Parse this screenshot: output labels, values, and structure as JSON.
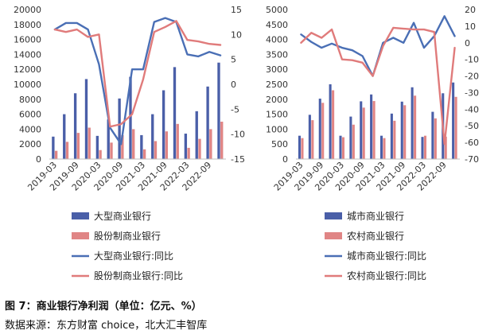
{
  "caption": "图 7：商业银行净利润（单位：亿元、%）",
  "source": "数据来源：东方财富 choice，北大汇丰智库",
  "chart_data": [
    {
      "type": "bar",
      "categories": [
        "2019-03",
        "2019-06",
        "2019-09",
        "2019-12",
        "2020-03",
        "2020-06",
        "2020-09",
        "2020-12",
        "2021-03",
        "2021-06",
        "2021-09",
        "2021-12",
        "2022-03",
        "2022-06",
        "2022-09",
        "2022-12"
      ],
      "x_tick_labels": [
        "2019-03",
        "2019-09",
        "2020-03",
        "2020-09",
        "2021-03",
        "2021-09",
        "2022-03",
        "2022-09"
      ],
      "ylim_left": [
        0,
        20000
      ],
      "yticks_left": [
        0,
        2000,
        4000,
        6000,
        8000,
        10000,
        12000,
        14000,
        16000,
        18000,
        20000
      ],
      "ylim_right": [
        -15,
        15
      ],
      "yticks_right": [
        -15,
        -10,
        -5,
        0,
        5,
        10,
        15
      ],
      "series": [
        {
          "name": "大型商业银行",
          "kind": "bar",
          "axis": "left",
          "color": "#4a5fa8",
          "values": [
            3000,
            6000,
            8800,
            10700,
            3100,
            5300,
            8100,
            11000,
            3200,
            6000,
            9200,
            12300,
            3400,
            6400,
            9700,
            12900
          ]
        },
        {
          "name": "股份制商业银行",
          "kind": "bar",
          "axis": "left",
          "color": "#e08585",
          "values": [
            1100,
            2300,
            3500,
            4200,
            1200,
            2200,
            3200,
            4000,
            1300,
            2400,
            3700,
            4700,
            1500,
            2700,
            4000,
            5000
          ]
        },
        {
          "name": "大型商业银行:同比",
          "kind": "line",
          "axis": "right",
          "color": "#4a6fb5",
          "values": [
            11.0,
            12.3,
            12.3,
            11.0,
            4.0,
            -8.7,
            -12.0,
            3.0,
            3.0,
            12.5,
            13.3,
            12.5,
            6.0,
            5.6,
            6.5,
            5.8
          ]
        },
        {
          "name": "股份制商业银行:同比",
          "kind": "line",
          "axis": "right",
          "color": "#e07b7b",
          "values": [
            11.0,
            10.5,
            11.0,
            9.5,
            10.0,
            -8.5,
            -8.0,
            -6.0,
            1.0,
            10.5,
            11.5,
            12.7,
            8.9,
            8.6,
            8.1,
            7.9
          ]
        }
      ]
    },
    {
      "type": "bar",
      "categories": [
        "2019-03",
        "2019-06",
        "2019-09",
        "2019-12",
        "2020-03",
        "2020-06",
        "2020-09",
        "2020-12",
        "2021-03",
        "2021-06",
        "2021-09",
        "2021-12",
        "2022-03",
        "2022-06",
        "2022-09",
        "2022-12"
      ],
      "x_tick_labels": [
        "2019-03",
        "2019-09",
        "2020-03",
        "2020-09",
        "2021-03",
        "2021-09",
        "2022-03",
        "2022-09"
      ],
      "ylim_left": [
        0,
        5000
      ],
      "yticks_left": [
        0,
        500,
        1000,
        1500,
        2000,
        2500,
        3000,
        3500,
        4000,
        4500,
        5000
      ],
      "ylim_right": [
        -70,
        20
      ],
      "yticks_right": [
        -70,
        -60,
        -50,
        -40,
        -30,
        -20,
        -10,
        0,
        10,
        20
      ],
      "series": [
        {
          "name": "城市商业银行",
          "kind": "bar",
          "axis": "left",
          "color": "#4a5fa8",
          "values": [
            780,
            1480,
            2020,
            2500,
            780,
            1420,
            1930,
            2160,
            780,
            1520,
            1920,
            2400,
            740,
            1580,
            2200,
            2560
          ]
        },
        {
          "name": "农村商业银行",
          "kind": "bar",
          "axis": "left",
          "color": "#e08585",
          "values": [
            700,
            1300,
            1880,
            2300,
            730,
            1150,
            1720,
            1940,
            700,
            1280,
            1800,
            2120,
            780,
            1360,
            750,
            2080
          ]
        },
        {
          "name": "城市商业银行:同比",
          "kind": "line",
          "axis": "right",
          "color": "#4a6fb5",
          "values": [
            5.0,
            0.5,
            -3.0,
            -0.5,
            -3.0,
            -4.5,
            -8.0,
            -20.0,
            0.0,
            3.0,
            0.0,
            12.0,
            -3.0,
            4.0,
            16.0,
            4.0
          ]
        },
        {
          "name": "农村商业银行:同比",
          "kind": "line",
          "axis": "right",
          "color": "#e07b7b",
          "values": [
            0.0,
            6.0,
            3.0,
            8.0,
            -10.0,
            -10.5,
            -12.0,
            -20.0,
            -2.0,
            9.0,
            8.5,
            8.0,
            8.0,
            6.5,
            -61.0,
            -3.0
          ]
        }
      ]
    }
  ]
}
